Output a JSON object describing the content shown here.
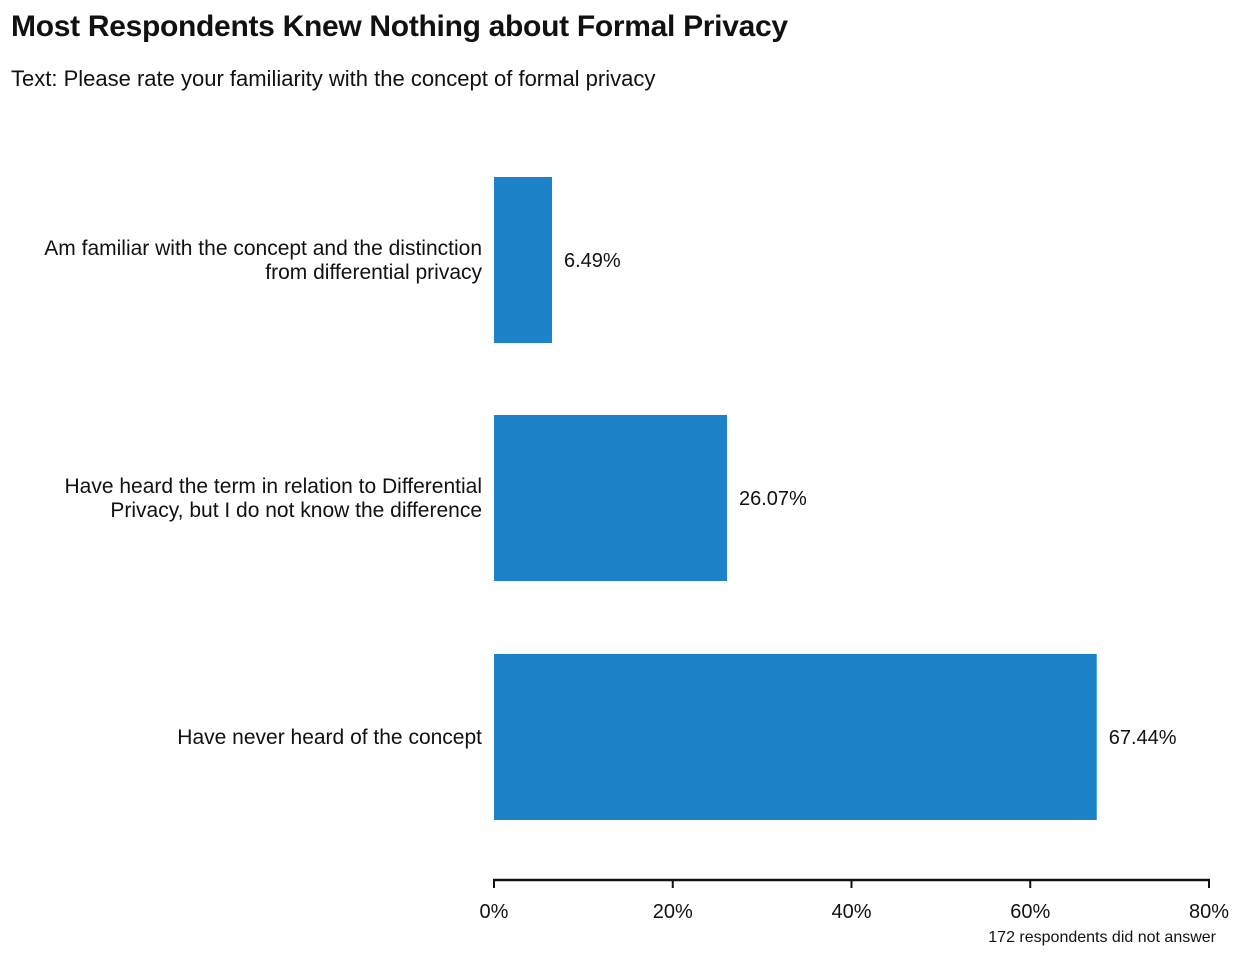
{
  "chart_data": {
    "type": "bar",
    "orientation": "horizontal",
    "title": "Most Respondents Knew Nothing about Formal Privacy",
    "subtitle": "Text: Please rate your familiarity with the concept of formal privacy",
    "caption": "172 respondents did not answer",
    "categories": [
      [
        "Am familiar with the concept and the distinction",
        "from differential privacy"
      ],
      [
        "Have heard the term in relation to Differential",
        "Privacy, but I do not know the difference"
      ],
      [
        "Have never heard of the concept"
      ]
    ],
    "values": [
      6.49,
      26.07,
      67.44
    ],
    "value_labels": [
      "6.49%",
      "26.07%",
      "67.44%"
    ],
    "xlim": [
      0,
      80
    ],
    "xticks": [
      0,
      20,
      40,
      60,
      80
    ],
    "xtick_labels": [
      "0%",
      "20%",
      "40%",
      "60%",
      "80%"
    ],
    "xlabel": "",
    "ylabel": "",
    "bar_color": "#1c83c8",
    "grid": false,
    "legend": "none"
  }
}
